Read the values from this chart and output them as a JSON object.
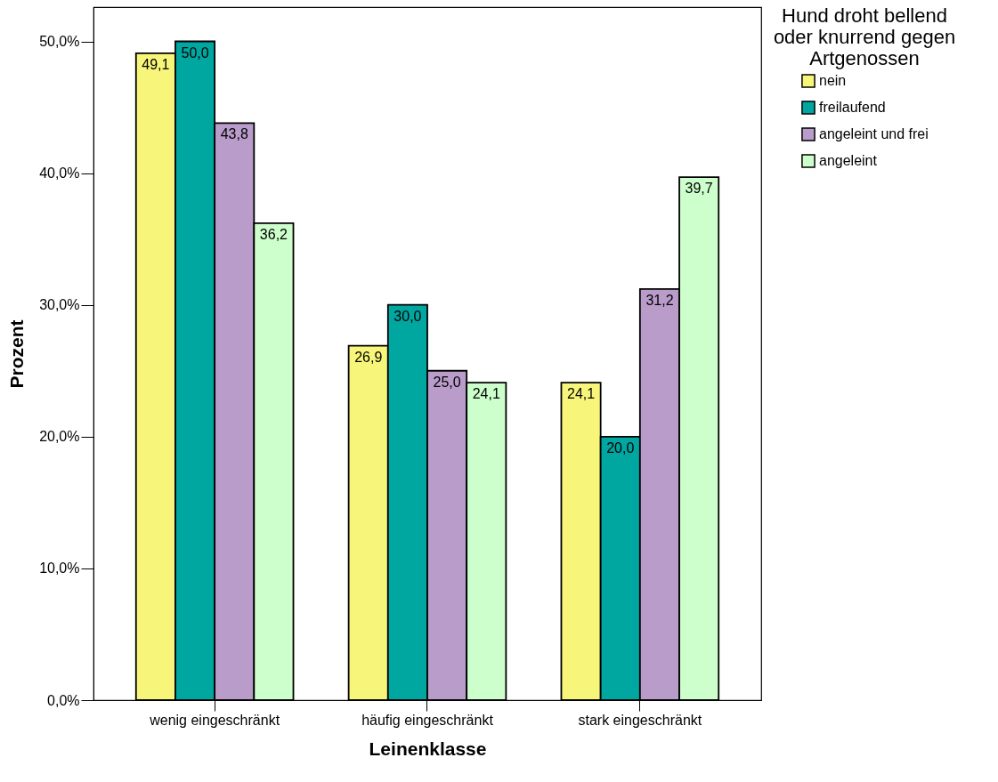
{
  "chart_data": {
    "type": "bar",
    "xlabel": "Leinenklasse",
    "ylabel": "Prozent",
    "legend_title": "Hund droht bellend\noder knurrend gegen\nArtgenossen",
    "legend": "right",
    "categories": [
      "wenig eingeschränkt",
      "häufig eingeschränkt",
      "stark eingeschränkt"
    ],
    "series": [
      {
        "name": "nein",
        "color": "#f8f67a",
        "values": [
          49.1,
          26.9,
          24.1
        ],
        "value_labels": [
          "49,1",
          "26,9",
          "24,1"
        ]
      },
      {
        "name": "freilaufend",
        "color": "#00a6a0",
        "values": [
          50.0,
          30.0,
          20.0
        ],
        "value_labels": [
          "50,0",
          "30,0",
          "20,0"
        ]
      },
      {
        "name": "angeleint und frei",
        "color": "#b99cca",
        "values": [
          43.8,
          25.0,
          31.2
        ],
        "value_labels": [
          "43,8",
          "25,0",
          "31,2"
        ]
      },
      {
        "name": "angeleint",
        "color": "#ccffcc",
        "values": [
          36.2,
          24.1,
          39.7
        ],
        "value_labels": [
          "36,2",
          "24,1",
          "39,7"
        ]
      }
    ],
    "ylim": [
      0,
      52.6
    ],
    "yticks": [
      {
        "value": 0,
        "label": "0,0%"
      },
      {
        "value": 10,
        "label": "10,0%"
      },
      {
        "value": 20,
        "label": "20,0%"
      },
      {
        "value": 30,
        "label": "30,0%"
      },
      {
        "value": 40,
        "label": "40,0%"
      },
      {
        "value": 50,
        "label": "50,0%"
      }
    ],
    "grid": false
  }
}
